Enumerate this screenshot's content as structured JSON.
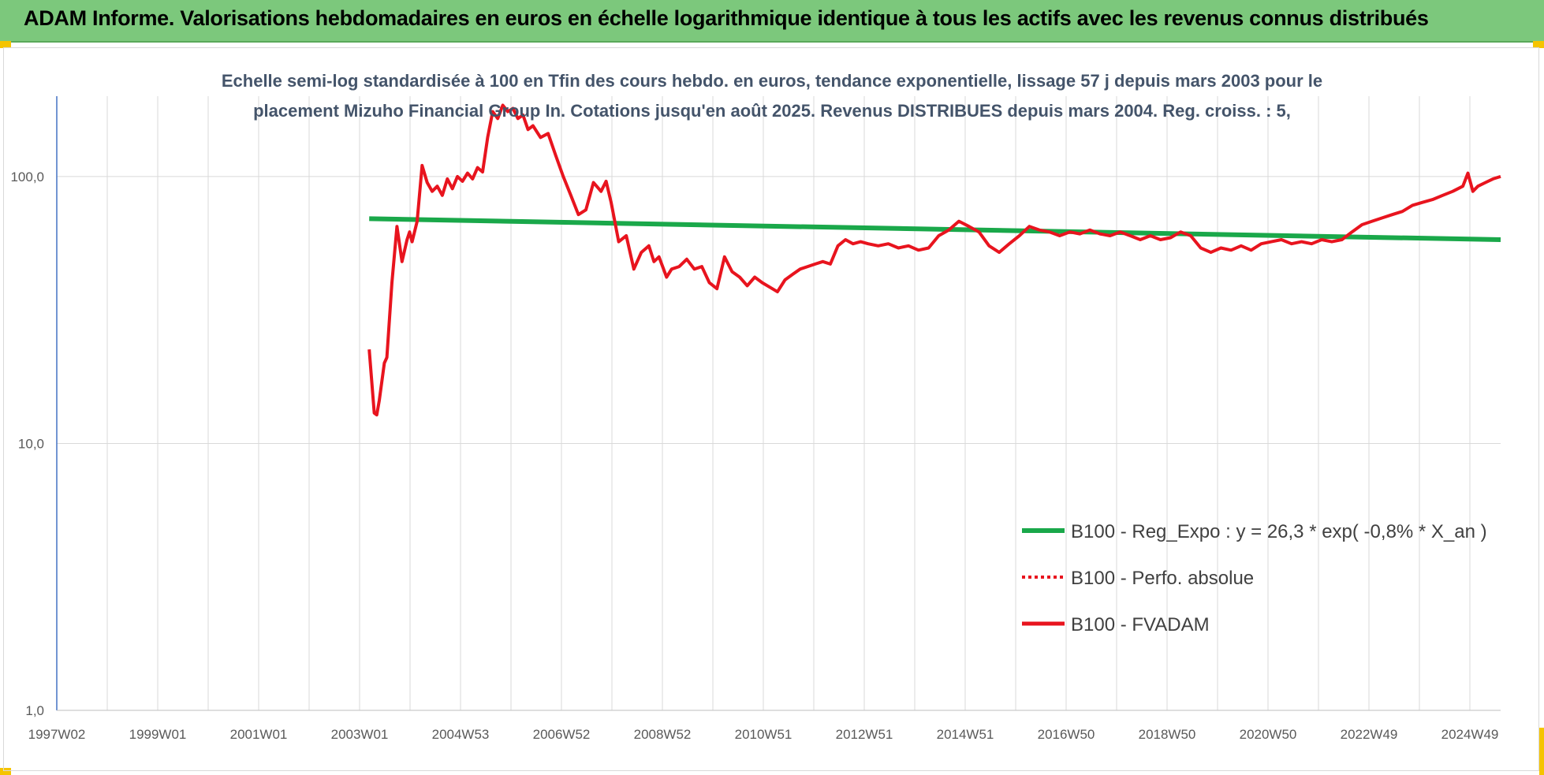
{
  "header": {
    "title": "ADAM Informe. Valorisations hebdomadaires en euros en échelle logarithmique identique à tous les actifs avec les revenus connus distribués"
  },
  "chart_data": {
    "type": "line",
    "subtitle_line1": "Echelle semi-log standardisée à 100 en Tfin des cours hebdo. en euros, tendance exponentielle, lissage 57 j depuis mars 2003 pour le",
    "subtitle_line2": "placement Mizuho Financial Group In. Cotations jusqu'en août 2025.  Revenus DISTRIBUES depuis mars 2004. Reg. croiss. : 5,",
    "y_scale": "log",
    "ylim": [
      1,
      200
    ],
    "y_ticks": [
      "1,0",
      "10,0",
      "100,0"
    ],
    "x_ticks": [
      "1997W02",
      "1999W01",
      "2001W01",
      "2003W01",
      "2004W53",
      "2006W52",
      "2008W52",
      "2010W51",
      "2012W51",
      "2014W51",
      "2016W50",
      "2018W50",
      "2020W50",
      "2022W49",
      "2024W49"
    ],
    "xlim": [
      1997.0,
      2025.65
    ],
    "grid": "vertical",
    "legend_position": "bottom-right",
    "colors": {
      "fvadam": "#e8141e",
      "reg_expo": "#1aa84a",
      "axis": "#4472c4",
      "grid": "#d9d9d9"
    },
    "series": [
      {
        "name": "B100 - Reg_Expo : y = 26,3 * exp( -0,8% *  X_an )",
        "style": "solid",
        "color": "#1aa84a",
        "x": [
          2003.2,
          2025.65
        ],
        "y": [
          69.5,
          58.0
        ]
      },
      {
        "name": "B100 - Perfo. absolue",
        "style": "dotted",
        "color": "#e8141e",
        "x": [],
        "y": []
      },
      {
        "name": "B100 - FVADAM",
        "style": "solid",
        "color": "#e8141e",
        "x": [
          2003.2,
          2003.3,
          2003.35,
          2003.4,
          2003.5,
          2003.55,
          2003.65,
          2003.75,
          2003.85,
          2003.95,
          2004.0,
          2004.05,
          2004.15,
          2004.25,
          2004.35,
          2004.45,
          2004.55,
          2004.65,
          2004.75,
          2004.85,
          2004.95,
          2005.05,
          2005.15,
          2005.25,
          2005.35,
          2005.45,
          2005.55,
          2005.65,
          2005.75,
          2005.85,
          2005.95,
          2006.05,
          2006.15,
          2006.25,
          2006.35,
          2006.45,
          2006.6,
          2006.75,
          2006.9,
          2007.05,
          2007.2,
          2007.35,
          2007.5,
          2007.65,
          2007.8,
          2007.9,
          2008.0,
          2008.15,
          2008.3,
          2008.45,
          2008.6,
          2008.75,
          2008.85,
          2008.95,
          2009.1,
          2009.2,
          2009.35,
          2009.5,
          2009.65,
          2009.8,
          2009.95,
          2010.1,
          2010.25,
          2010.4,
          2010.55,
          2010.7,
          2010.85,
          2011.0,
          2011.15,
          2011.3,
          2011.45,
          2011.6,
          2011.75,
          2011.9,
          2012.05,
          2012.2,
          2012.35,
          2012.5,
          2012.65,
          2012.8,
          2012.95,
          2013.1,
          2013.3,
          2013.5,
          2013.7,
          2013.9,
          2014.1,
          2014.3,
          2014.5,
          2014.7,
          2014.9,
          2015.1,
          2015.3,
          2015.5,
          2015.7,
          2015.9,
          2016.1,
          2016.3,
          2016.5,
          2016.7,
          2016.9,
          2017.1,
          2017.3,
          2017.5,
          2017.7,
          2017.9,
          2018.1,
          2018.3,
          2018.5,
          2018.7,
          2018.9,
          2019.1,
          2019.3,
          2019.5,
          2019.7,
          2019.9,
          2020.1,
          2020.3,
          2020.5,
          2020.7,
          2020.9,
          2021.1,
          2021.3,
          2021.5,
          2021.7,
          2021.9,
          2022.1,
          2022.3,
          2022.5,
          2022.7,
          2022.9,
          2023.1,
          2023.3,
          2023.5,
          2023.7,
          2023.9,
          2024.1,
          2024.3,
          2024.5,
          2024.7,
          2024.9,
          2025.0,
          2025.1,
          2025.2,
          2025.35,
          2025.5,
          2025.65
        ],
        "y": [
          22.5,
          13.0,
          12.8,
          14.5,
          20.0,
          21.0,
          40.0,
          65.0,
          48.0,
          58.0,
          62.0,
          57.0,
          68.0,
          110.0,
          95.0,
          88.0,
          92.0,
          85.0,
          98.0,
          90.0,
          100.0,
          96.0,
          103.0,
          98.0,
          108.0,
          104.0,
          140.0,
          175.0,
          165.0,
          185.0,
          175.0,
          180.0,
          165.0,
          170.0,
          150.0,
          155.0,
          140.0,
          145.0,
          120.0,
          100.0,
          85.0,
          72.0,
          75.0,
          95.0,
          88.0,
          96.0,
          80.0,
          57.0,
          60.0,
          45.0,
          52.0,
          55.0,
          48.0,
          50.0,
          42.0,
          45.0,
          46.0,
          49.0,
          45.0,
          46.0,
          40.0,
          38.0,
          50.0,
          44.0,
          42.0,
          39.0,
          42.0,
          40.0,
          38.5,
          37.0,
          41.0,
          43.0,
          45.0,
          46.0,
          47.0,
          48.0,
          47.0,
          55.0,
          58.0,
          56.0,
          57.0,
          56.0,
          55.0,
          56.0,
          54.0,
          55.0,
          53.0,
          54.0,
          60.0,
          63.0,
          68.0,
          65.0,
          62.0,
          55.0,
          52.0,
          56.0,
          60.0,
          65.0,
          63.0,
          62.0,
          60.0,
          62.0,
          61.0,
          63.0,
          61.0,
          60.0,
          62.0,
          60.0,
          58.0,
          60.0,
          58.0,
          59.0,
          62.0,
          60.0,
          54.0,
          52.0,
          54.0,
          53.0,
          55.0,
          53.0,
          56.0,
          57.0,
          58.0,
          56.0,
          57.0,
          56.0,
          58.0,
          57.0,
          58.0,
          62.0,
          66.0,
          68.0,
          70.0,
          72.0,
          74.0,
          78.0,
          80.0,
          82.0,
          85.0,
          88.0,
          92.0,
          103.0,
          88.0,
          92.0,
          95.0,
          98.0,
          100.0
        ]
      }
    ]
  }
}
